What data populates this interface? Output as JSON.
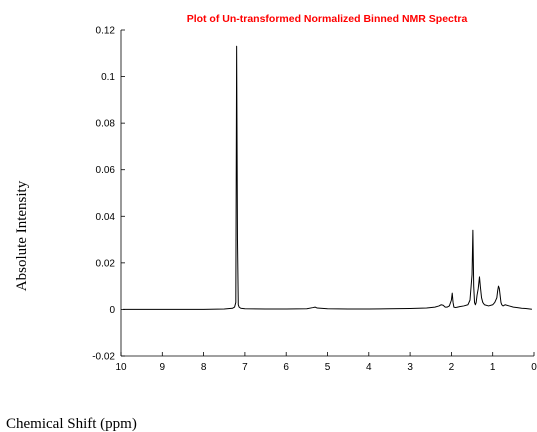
{
  "chart_data": {
    "type": "line",
    "title": "Plot of Un-transformed Normalized Binned NMR Spectra",
    "xlabel": "Chemical Shift (ppm)",
    "ylabel": "Absolute Intensity",
    "xlim": [
      10,
      0
    ],
    "ylim": [
      -0.02,
      0.12
    ],
    "x_reversed": true,
    "grid": false,
    "xticks": [
      10,
      9,
      8,
      7,
      6,
      5,
      4,
      3,
      2,
      1,
      0
    ],
    "yticks": [
      -0.02,
      0,
      0.02,
      0.04,
      0.06,
      0.08,
      0.1,
      0.12
    ],
    "ytick_labels": [
      "-0.02",
      "0",
      "0.02",
      "0.04",
      "0.06",
      "0.08",
      "0.1",
      "0.12"
    ],
    "colors": {
      "title": "#ff0000",
      "line": "#000000"
    },
    "series": [
      {
        "x": [
          9.95,
          9.0,
          8.0,
          7.5,
          7.3,
          7.25,
          7.22,
          7.2,
          7.18,
          7.16,
          7.14,
          7.1,
          7.0,
          6.5,
          6.0,
          5.5,
          5.35,
          5.3,
          5.25,
          5.0,
          4.5,
          4.0,
          3.5,
          3.0,
          2.6,
          2.4,
          2.3,
          2.25,
          2.2,
          2.15,
          2.1,
          2.05,
          2.0,
          1.98,
          1.96,
          1.94,
          1.9,
          1.85,
          1.8,
          1.7,
          1.6,
          1.55,
          1.5,
          1.48,
          1.46,
          1.44,
          1.42,
          1.4,
          1.38,
          1.35,
          1.32,
          1.3,
          1.27,
          1.24,
          1.2,
          1.1,
          1.0,
          0.95,
          0.9,
          0.88,
          0.86,
          0.84,
          0.82,
          0.8,
          0.78,
          0.75,
          0.7,
          0.6,
          0.5,
          0.4,
          0.3,
          0.2,
          0.1,
          0.05
        ],
        "y": [
          0.0,
          0.0,
          0.0,
          0.0002,
          0.0005,
          0.001,
          0.003,
          0.113,
          0.03,
          0.002,
          0.001,
          0.0005,
          0.0003,
          0.0002,
          0.0002,
          0.0003,
          0.0008,
          0.001,
          0.0006,
          0.0003,
          0.0002,
          0.0002,
          0.0003,
          0.0004,
          0.0006,
          0.001,
          0.0015,
          0.002,
          0.0018,
          0.001,
          0.001,
          0.0015,
          0.004,
          0.007,
          0.003,
          0.001,
          0.0008,
          0.001,
          0.0012,
          0.0015,
          0.002,
          0.004,
          0.015,
          0.034,
          0.01,
          0.003,
          0.002,
          0.003,
          0.006,
          0.009,
          0.014,
          0.01,
          0.005,
          0.003,
          0.002,
          0.0015,
          0.002,
          0.003,
          0.005,
          0.008,
          0.01,
          0.009,
          0.006,
          0.003,
          0.002,
          0.0015,
          0.002,
          0.0015,
          0.001,
          0.0008,
          0.0005,
          0.0004,
          0.0002,
          0.0001
        ]
      }
    ]
  }
}
